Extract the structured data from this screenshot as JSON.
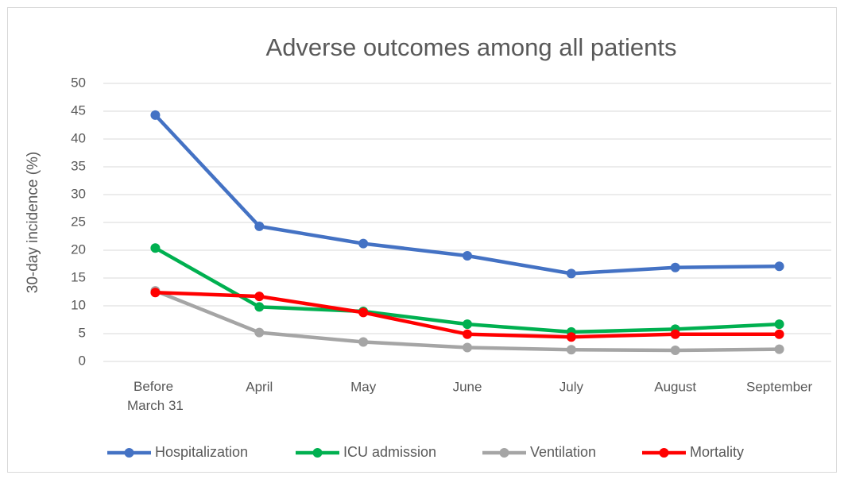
{
  "chart_data": {
    "type": "line",
    "title": "Adverse outcomes among all patients",
    "y_label": "30-day incidence (%)",
    "categories": [
      "Before March 31",
      "April",
      "May",
      "June",
      "July",
      "August",
      "September"
    ],
    "series": [
      {
        "name": "Hospitalization",
        "color": "#4472c4",
        "values": [
          44.3,
          24.3,
          21.2,
          19.0,
          15.8,
          16.9,
          17.1
        ]
      },
      {
        "name": "ICU admission",
        "color": "#00b050",
        "values": [
          20.4,
          9.8,
          9.0,
          6.7,
          5.3,
          5.8,
          6.7
        ]
      },
      {
        "name": "Ventilation",
        "color": "#a5a5a5",
        "values": [
          12.7,
          5.2,
          3.5,
          2.5,
          2.1,
          2.0,
          2.2
        ]
      },
      {
        "name": "Mortality",
        "color": "#ff0000",
        "values": [
          12.4,
          11.7,
          8.8,
          4.9,
          4.4,
          4.9,
          4.9
        ]
      }
    ],
    "ylim": [
      0,
      50
    ],
    "yticks": [
      0,
      5,
      10,
      15,
      20,
      25,
      30,
      35,
      40,
      45,
      50
    ],
    "grid": true,
    "legend": "bottom"
  }
}
